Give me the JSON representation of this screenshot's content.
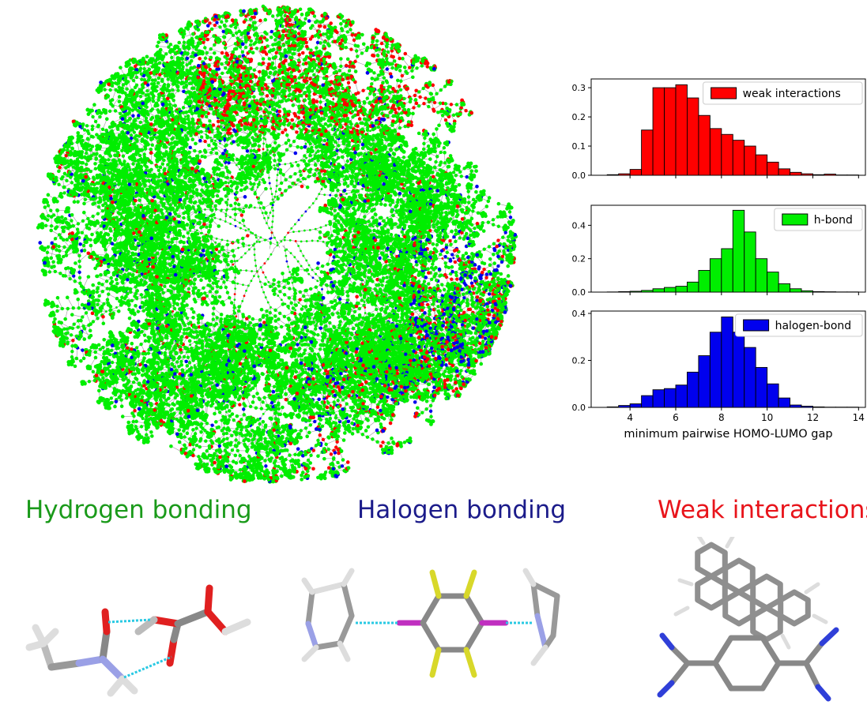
{
  "colors": {
    "weak": "#ff0000",
    "hbond": "#00ee00",
    "halogen": "#0000ee",
    "edge": "#9a9a9a"
  },
  "tree_map": {
    "node_colors": [
      "green",
      "red",
      "blue"
    ]
  },
  "chart_data": [
    {
      "type": "bar",
      "legend": "weak interactions",
      "color": "#ff0000",
      "bin_edges": [
        3,
        3.5,
        4,
        4.5,
        5,
        5.5,
        6,
        6.5,
        7,
        7.5,
        8,
        8.5,
        9,
        9.5,
        10,
        10.5,
        11,
        11.5,
        12,
        12.5,
        13,
        13.5,
        14
      ],
      "values": [
        0.002,
        0.005,
        0.02,
        0.155,
        0.3,
        0.3,
        0.31,
        0.265,
        0.205,
        0.16,
        0.14,
        0.12,
        0.1,
        0.07,
        0.045,
        0.022,
        0.01,
        0.005,
        0.002,
        0.004,
        0.001,
        0.001
      ],
      "yticks": [
        0.0,
        0.1,
        0.2,
        0.3
      ],
      "ylim": [
        0,
        0.33
      ],
      "xlim": [
        2.3,
        14.3
      ],
      "legend_position": "top-right"
    },
    {
      "type": "bar",
      "legend": "h-bond",
      "color": "#00ee00",
      "bin_edges": [
        3,
        3.5,
        4,
        4.5,
        5,
        5.5,
        6,
        6.5,
        7,
        7.5,
        8,
        8.5,
        9,
        9.5,
        10,
        10.5,
        11,
        11.5,
        12,
        12.5,
        13,
        13.5,
        14
      ],
      "values": [
        0.001,
        0.003,
        0.005,
        0.01,
        0.02,
        0.028,
        0.035,
        0.06,
        0.13,
        0.2,
        0.26,
        0.49,
        0.36,
        0.2,
        0.12,
        0.05,
        0.02,
        0.008,
        0.003,
        0.002,
        0.001,
        0.001
      ],
      "yticks": [
        0.0,
        0.2,
        0.4
      ],
      "ylim": [
        0,
        0.52
      ],
      "xlim": [
        2.3,
        14.3
      ],
      "legend_position": "top-right"
    },
    {
      "type": "bar",
      "legend": "halogen-bond",
      "color": "#0000ee",
      "bin_edges": [
        3,
        3.5,
        4,
        4.5,
        5,
        5.5,
        6,
        6.5,
        7,
        7.5,
        8,
        8.5,
        9,
        9.5,
        10,
        10.5,
        11,
        11.5,
        12,
        12.5,
        13,
        13.5,
        14
      ],
      "values": [
        0.002,
        0.008,
        0.015,
        0.05,
        0.075,
        0.08,
        0.095,
        0.15,
        0.22,
        0.32,
        0.385,
        0.32,
        0.255,
        0.17,
        0.1,
        0.04,
        0.01,
        0.005,
        0.002,
        0.001,
        0.001,
        0.001
      ],
      "yticks": [
        0.0,
        0.2,
        0.4
      ],
      "ylim": [
        0,
        0.41
      ],
      "xlim": [
        2.3,
        14.3
      ],
      "xticks": [
        4,
        6,
        8,
        10,
        12,
        14
      ],
      "xlabel": "minimum pairwise HOMO-LUMO gap",
      "legend_position": "top-right"
    }
  ],
  "labels": {
    "hydrogen": {
      "text": "Hydrogen bonding",
      "color": "#1a9a1a"
    },
    "halogen": {
      "text": "Halogen bonding",
      "color": "#1b1b8a"
    },
    "weak": {
      "text": "Weak interactions",
      "color": "#e8141b"
    }
  },
  "molecules": {
    "hydrogen": "hydrogen-bonded dimer",
    "halogen": "halogen-bonded complex",
    "weak": "stacked aromatic pair"
  }
}
